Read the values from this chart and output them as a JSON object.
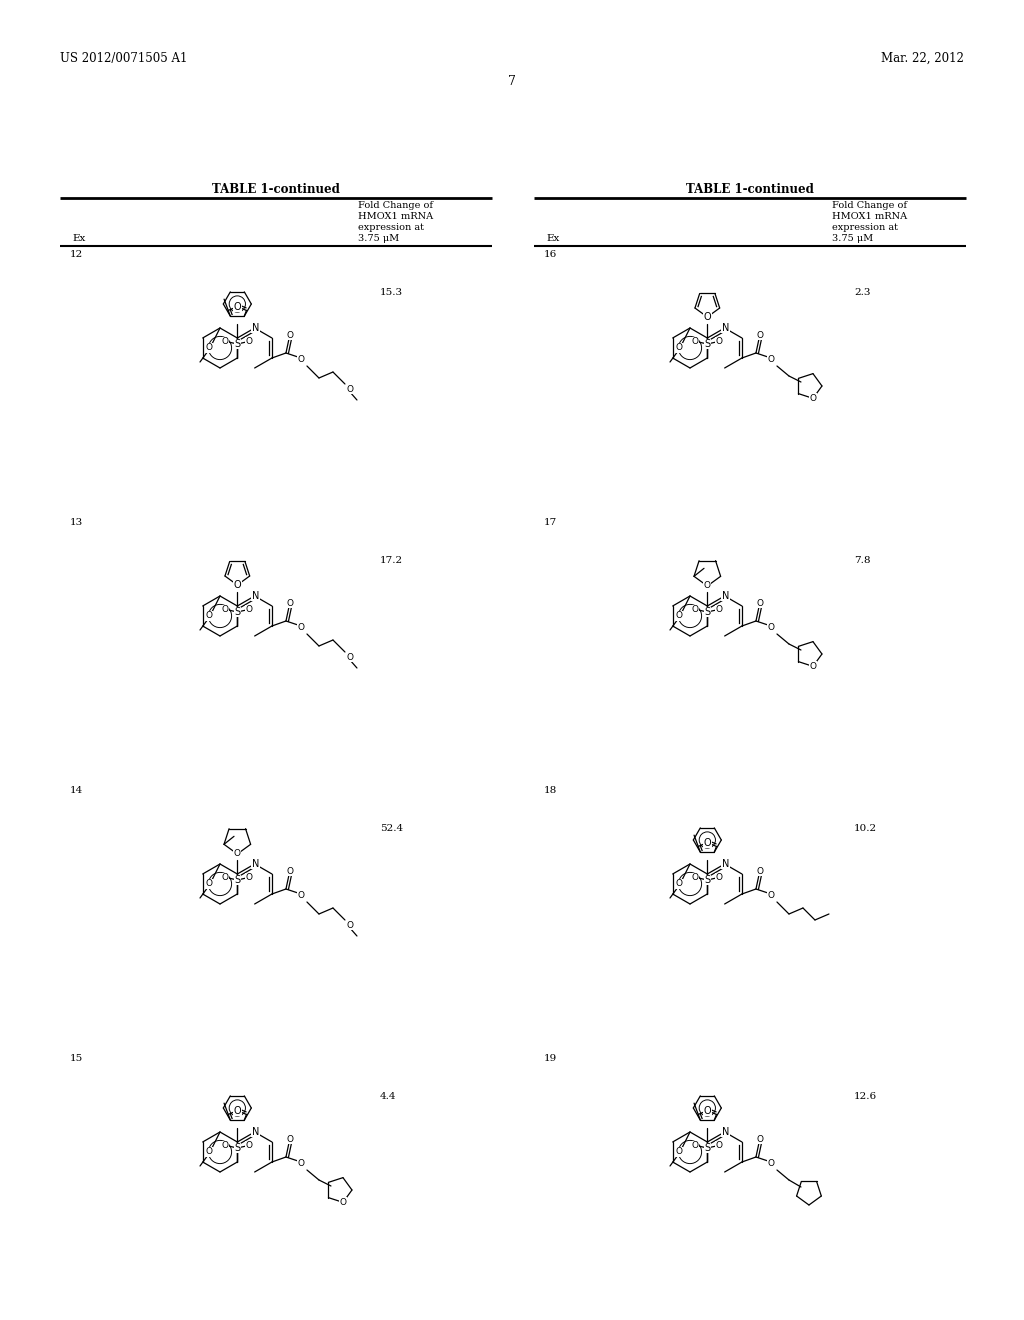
{
  "page_background": "#ffffff",
  "header_left": "US 2012/0071505 A1",
  "header_right": "Mar. 22, 2012",
  "page_number": "7",
  "table_title": "TABLE 1-continued",
  "entries_left": [
    {
      "ex": "12",
      "fold": "15.3"
    },
    {
      "ex": "13",
      "fold": "17.2"
    },
    {
      "ex": "14",
      "fold": "52.4"
    },
    {
      "ex": "15",
      "fold": "4.4"
    }
  ],
  "entries_right": [
    {
      "ex": "16",
      "fold": "2.3"
    },
    {
      "ex": "17",
      "fold": "7.8"
    },
    {
      "ex": "18",
      "fold": "10.2"
    },
    {
      "ex": "19",
      "fold": "12.6"
    }
  ]
}
